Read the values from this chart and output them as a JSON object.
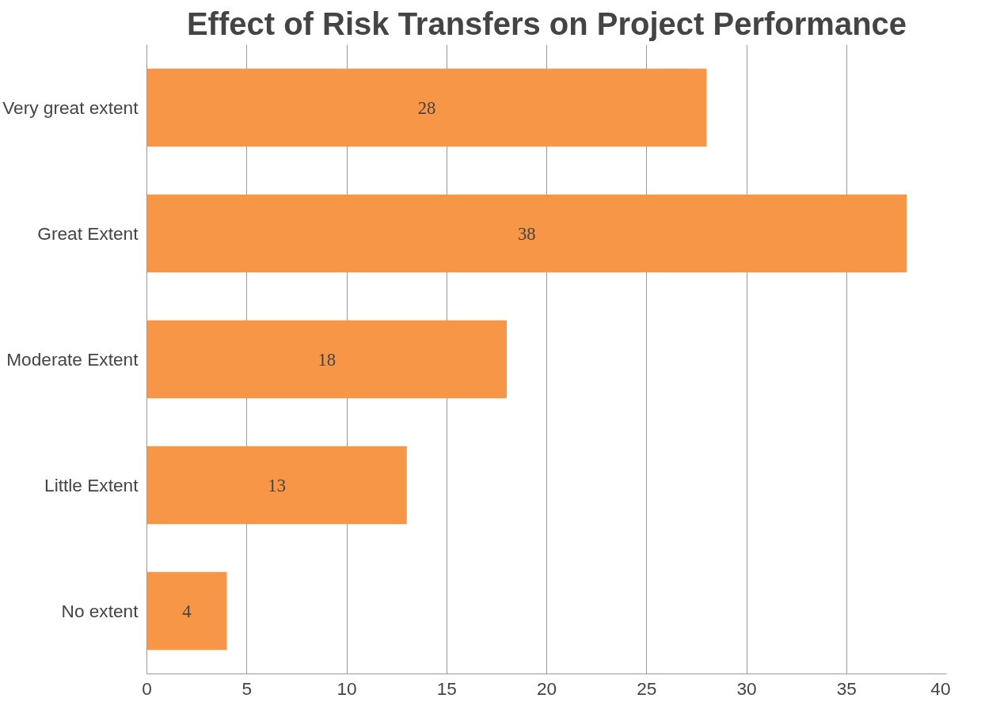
{
  "chart_data": {
    "type": "bar",
    "orientation": "horizontal",
    "title": "Effect of Risk Transfers on Project Performance",
    "categories": [
      "Very great extent",
      "Great Extent",
      "Moderate Extent",
      "Little Extent",
      "No extent"
    ],
    "values": [
      28,
      38,
      18,
      13,
      4
    ],
    "color": "#f79646",
    "xlim": [
      0,
      40
    ],
    "xticks": [
      0,
      5,
      10,
      15,
      20,
      25,
      30,
      35,
      40
    ],
    "grid": "x",
    "data_labels": true
  }
}
